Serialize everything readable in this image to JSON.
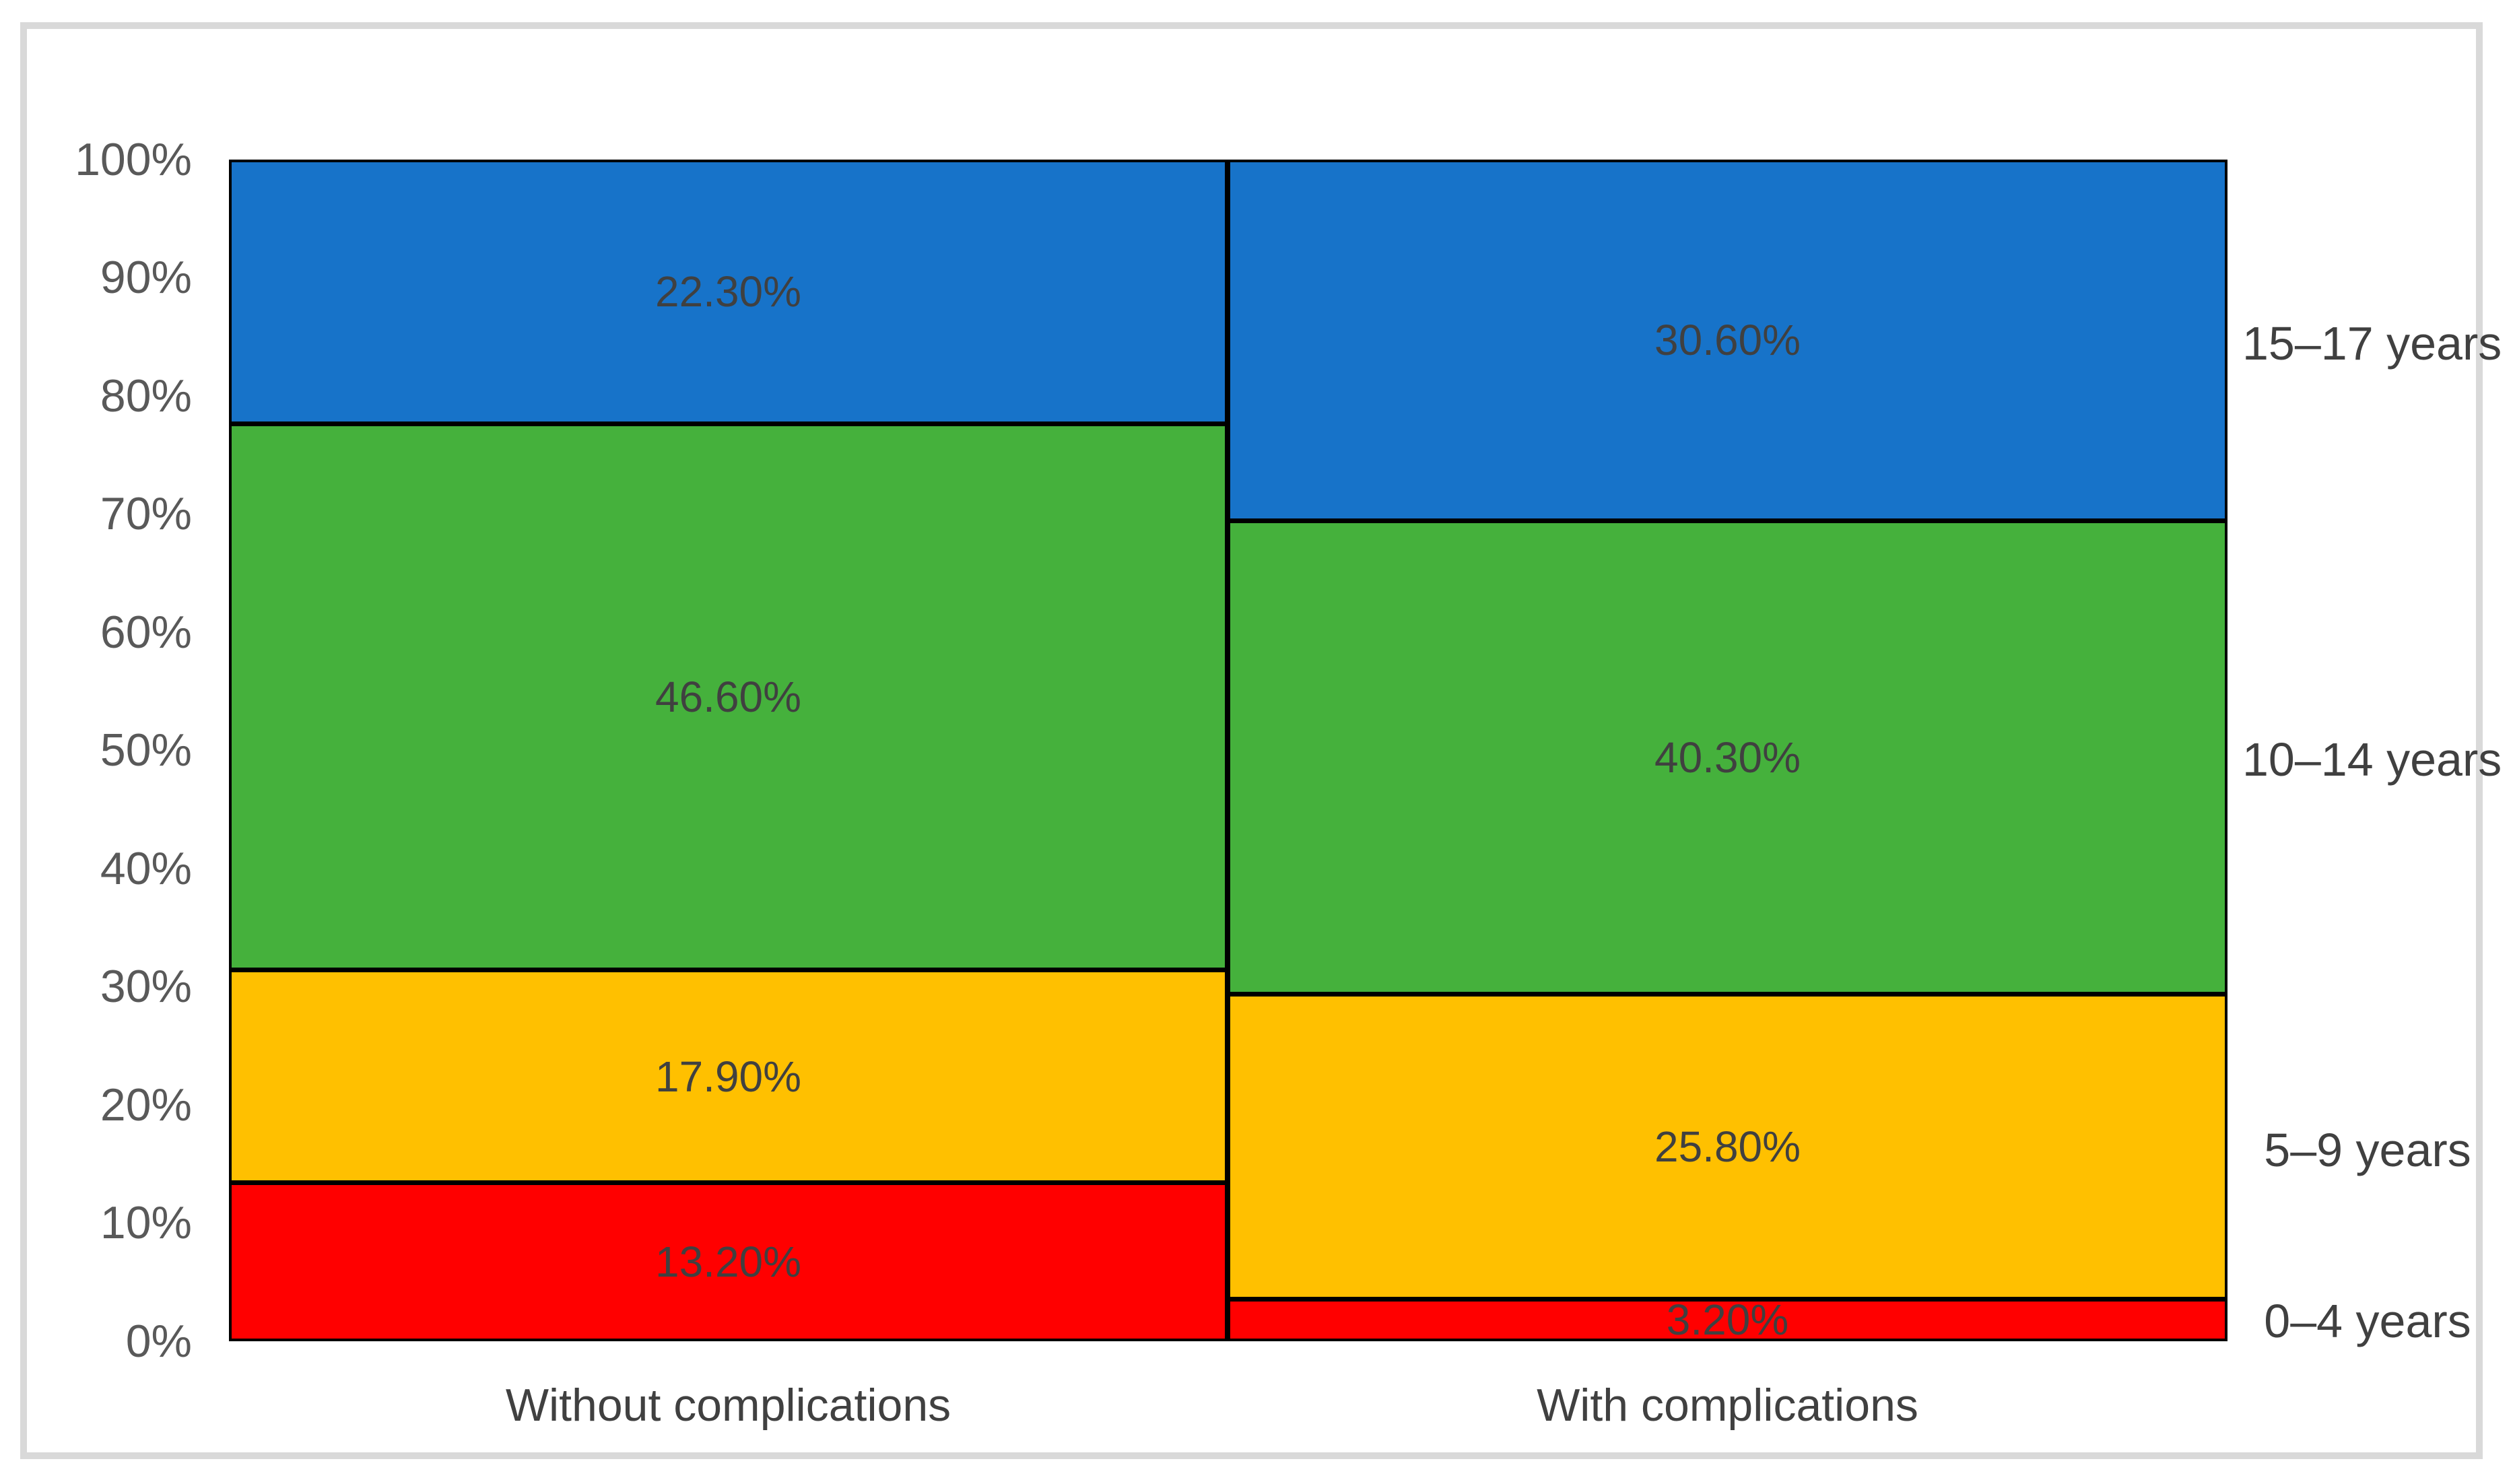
{
  "chart_data": {
    "type": "bar",
    "variant": "100% stacked column",
    "title": "",
    "xlabel": "",
    "ylabel": "",
    "grid": false,
    "categories": [
      "Without complications",
      "With complications"
    ],
    "series": [
      {
        "name": "0–4 years",
        "color": "#FF0000",
        "values": [
          13.2,
          3.2
        ],
        "labels": [
          "13.20%",
          "3.20%"
        ]
      },
      {
        "name": "5–9 years",
        "color": "#FFC000",
        "values": [
          17.9,
          25.8
        ],
        "labels": [
          "17.90%",
          "25.80%"
        ]
      },
      {
        "name": "10–14 years",
        "color": "#45B13C",
        "values": [
          46.6,
          40.3
        ],
        "labels": [
          "46.60%",
          "40.30%"
        ]
      },
      {
        "name": "15–17 years",
        "color": "#1773C9",
        "values": [
          22.3,
          30.6
        ],
        "labels": [
          "22.30%",
          "30.60%"
        ]
      }
    ],
    "stack_order_top_to_bottom": [
      "15–17 years",
      "10–14 years",
      "5–9 years",
      "0–4 years"
    ],
    "y_axis": {
      "min": 0,
      "max": 100,
      "tick_step": 10,
      "ticks": [
        "100%",
        "90%",
        "80%",
        "70%",
        "60%",
        "50%",
        "40%",
        "30%",
        "20%",
        "10%",
        "0%"
      ]
    },
    "right_labels": [
      "15–17 years",
      "10–14 years",
      "5–9 years",
      "0–4 years"
    ],
    "legend_position": "right-of-plot",
    "colors": {
      "age_0_4": "#FF0000",
      "age_5_9": "#FFC000",
      "age_10_14": "#45B13C",
      "age_15_17": "#1773C9",
      "segment_border": "#000000",
      "frame_border": "#D9D9D9",
      "axis_text": "#595959",
      "label_text": "#404040"
    }
  }
}
